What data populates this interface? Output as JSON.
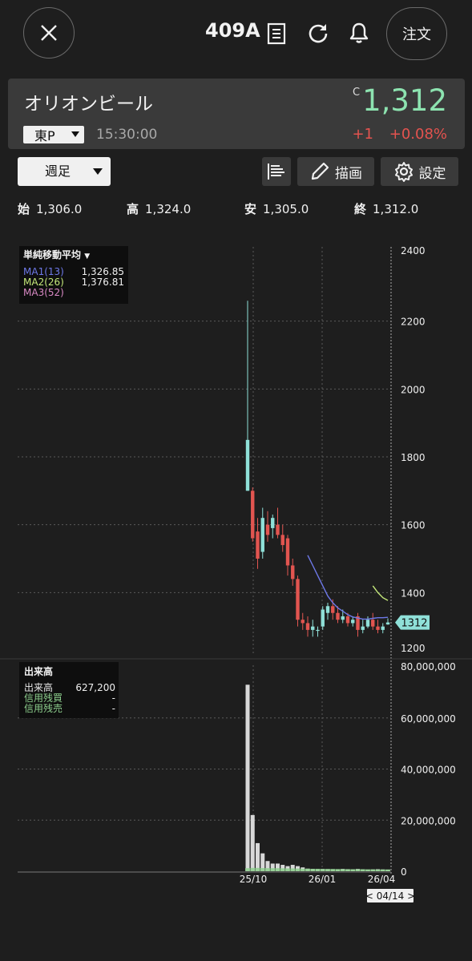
{
  "header": {
    "ticker": "409A",
    "order_label": "注文",
    "icons": [
      "close-icon",
      "document-icon",
      "refresh-icon",
      "bell-icon"
    ]
  },
  "stock": {
    "name": "オリオンビール",
    "market": "東P",
    "time": "15:30:00",
    "price_prefix": "C",
    "price": "1,312",
    "change": "+1",
    "change_pct": "+0.08%",
    "colors": {
      "up": "#8de3b0",
      "down": "#e4534f"
    }
  },
  "toolbar": {
    "period": "週足",
    "draw_label": "描画",
    "settings_label": "設定"
  },
  "ohlc": {
    "open_label": "始",
    "open": "1,306.0",
    "high_label": "高",
    "high": "1,324.0",
    "low_label": "安",
    "low": "1,305.0",
    "close_label": "終",
    "close": "1,312.0"
  },
  "price_legend": {
    "title": "単純移動平均",
    "rows": [
      {
        "label": "MA1(13)",
        "value": "1,326.85",
        "color": "#6e79e8"
      },
      {
        "label": "MA2(26)",
        "value": "1,376.81",
        "color": "#c4e87a"
      },
      {
        "label": "MA3(52)",
        "value": "",
        "color": "#d889c4"
      }
    ]
  },
  "volume_legend": {
    "title": "出来高",
    "rows": [
      {
        "label": "出来高",
        "value": "627,200",
        "color": "#e6e6e6"
      },
      {
        "label": "信用残買",
        "value": "-",
        "color": "#8ed08e"
      },
      {
        "label": "信用残売",
        "value": "-",
        "color": "#8ed08e"
      }
    ]
  },
  "chart_data": [
    {
      "type": "candlestick",
      "y_ticks": [
        "2400",
        "2200",
        "2000",
        "1800",
        "1600",
        "1400",
        "1200"
      ],
      "ylim": [
        1200,
        2400
      ],
      "x_ticks": [
        "25/10",
        "26/01",
        "26/04"
      ],
      "last_price_tag": "1312",
      "candles": [
        {
          "o": 1700,
          "h": 2260,
          "l": 1700,
          "c": 1850
        },
        {
          "o": 1700,
          "h": 1710,
          "l": 1550,
          "c": 1560
        },
        {
          "o": 1580,
          "h": 1620,
          "l": 1470,
          "c": 1500
        },
        {
          "o": 1520,
          "h": 1650,
          "l": 1500,
          "c": 1620
        },
        {
          "o": 1600,
          "h": 1640,
          "l": 1550,
          "c": 1570
        },
        {
          "o": 1590,
          "h": 1630,
          "l": 1560,
          "c": 1620
        },
        {
          "o": 1600,
          "h": 1650,
          "l": 1560,
          "c": 1570
        },
        {
          "o": 1570,
          "h": 1600,
          "l": 1520,
          "c": 1540
        },
        {
          "o": 1560,
          "h": 1570,
          "l": 1450,
          "c": 1480
        },
        {
          "o": 1480,
          "h": 1500,
          "l": 1420,
          "c": 1440
        },
        {
          "o": 1440,
          "h": 1450,
          "l": 1300,
          "c": 1320
        },
        {
          "o": 1320,
          "h": 1340,
          "l": 1290,
          "c": 1310
        },
        {
          "o": 1310,
          "h": 1330,
          "l": 1270,
          "c": 1290
        },
        {
          "o": 1290,
          "h": 1320,
          "l": 1270,
          "c": 1300
        },
        {
          "o": 1290,
          "h": 1300,
          "l": 1270,
          "c": 1290
        },
        {
          "o": 1300,
          "h": 1360,
          "l": 1290,
          "c": 1350
        },
        {
          "o": 1340,
          "h": 1370,
          "l": 1320,
          "c": 1360
        },
        {
          "o": 1360,
          "h": 1380,
          "l": 1320,
          "c": 1340
        },
        {
          "o": 1340,
          "h": 1360,
          "l": 1310,
          "c": 1320
        },
        {
          "o": 1320,
          "h": 1350,
          "l": 1310,
          "c": 1330
        },
        {
          "o": 1330,
          "h": 1340,
          "l": 1300,
          "c": 1310
        },
        {
          "o": 1310,
          "h": 1330,
          "l": 1300,
          "c": 1320
        },
        {
          "o": 1330,
          "h": 1340,
          "l": 1270,
          "c": 1290
        },
        {
          "o": 1290,
          "h": 1320,
          "l": 1280,
          "c": 1300
        },
        {
          "o": 1300,
          "h": 1330,
          "l": 1295,
          "c": 1320
        },
        {
          "o": 1320,
          "h": 1340,
          "l": 1290,
          "c": 1300
        },
        {
          "o": 1300,
          "h": 1320,
          "l": 1280,
          "c": 1290
        },
        {
          "o": 1290,
          "h": 1310,
          "l": 1280,
          "c": 1300
        },
        {
          "o": 1306,
          "h": 1324,
          "l": 1305,
          "c": 1312
        }
      ],
      "ma1": [
        null,
        null,
        null,
        null,
        null,
        null,
        null,
        null,
        null,
        null,
        null,
        null,
        1510,
        1480,
        1450,
        1420,
        1390,
        1370,
        1355,
        1345,
        1335,
        1328,
        1325,
        1322,
        1322,
        1324,
        1326,
        1326,
        1327
      ],
      "ma2": [
        null,
        null,
        null,
        null,
        null,
        null,
        null,
        null,
        null,
        null,
        null,
        null,
        null,
        null,
        null,
        null,
        null,
        null,
        null,
        null,
        null,
        null,
        null,
        null,
        null,
        1420,
        1400,
        1385,
        1377
      ]
    },
    {
      "type": "bar",
      "title": "出来高",
      "y_ticks": [
        "80,000,000",
        "60,000,000",
        "40,000,000",
        "20,000,000",
        "0"
      ],
      "ylim": [
        0,
        80000000
      ],
      "volume": [
        73000000,
        22000000,
        11000000,
        7000000,
        4000000,
        3000000,
        3000000,
        2500000,
        2000000,
        2500000,
        2000000,
        1500000,
        1000000,
        900000,
        800000,
        900000,
        800000,
        700000,
        700000,
        900000,
        800000,
        700000,
        900000,
        700000,
        600000,
        700000,
        800000,
        700000,
        627200
      ],
      "margin_buy": [
        1200000,
        1300000,
        1300000,
        1250000,
        1200000,
        1200000,
        1200000,
        1150000,
        1100000,
        1100000,
        1050000,
        1000000,
        1000000,
        950000,
        950000,
        900000,
        900000,
        900000,
        850000,
        850000,
        800000,
        800000,
        800000,
        800000,
        750000,
        750000,
        700000,
        700000,
        700000
      ]
    }
  ]
}
